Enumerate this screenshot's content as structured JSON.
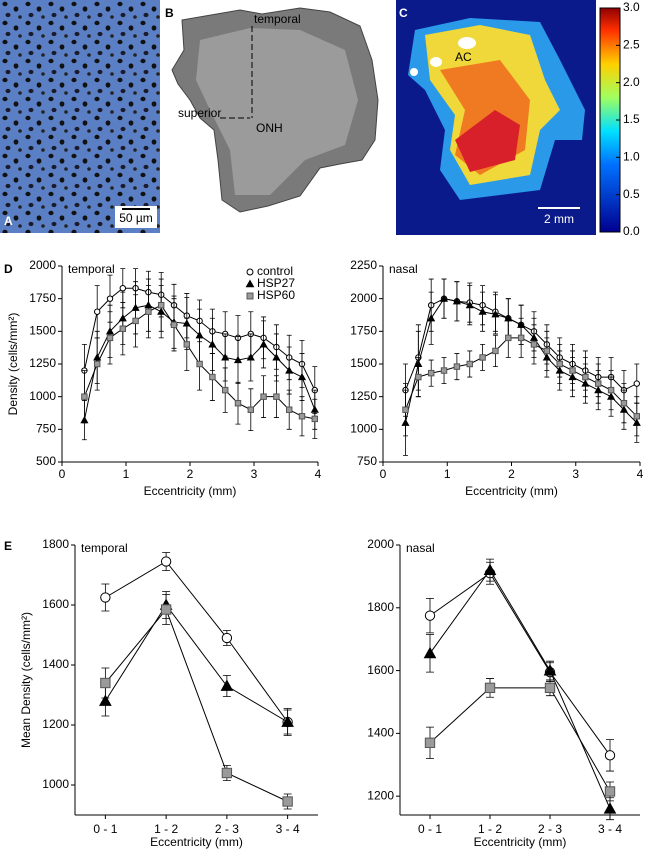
{
  "panels": {
    "A": {
      "label": "A",
      "scale_bar": "50 µm"
    },
    "B": {
      "label": "B",
      "annotations": [
        "temporal",
        "superior",
        "ONH"
      ]
    },
    "C": {
      "label": "C",
      "annotations": [
        "AC"
      ],
      "scale_bar": "2 mm",
      "colorbar": {
        "lim": [
          0,
          3
        ],
        "ticks": [
          {
            "value": 0,
            "label": "0.0"
          },
          0.5,
          {
            "value": 1,
            "label": "1.0"
          },
          1.5,
          {
            "value": 2,
            "label": "2.0"
          },
          2.5,
          {
            "value": 3,
            "label": "3.0"
          }
        ]
      }
    },
    "D": {
      "label": "D"
    },
    "E": {
      "label": "E"
    }
  },
  "chart_data": [
    {
      "type": "line",
      "title": "temporal",
      "xlabel": "Eccentricity (mm)",
      "ylabel": "Density (cells/mm²)",
      "x": [
        0.35,
        0.55,
        0.75,
        0.95,
        1.15,
        1.35,
        1.55,
        1.75,
        1.95,
        2.15,
        2.35,
        2.55,
        2.75,
        2.95,
        3.15,
        3.35,
        3.55,
        3.75,
        3.95
      ],
      "xlim": [
        0,
        4
      ],
      "xticks": [
        0,
        1,
        2,
        3,
        4
      ],
      "ylim": [
        500,
        2000
      ],
      "yticks": [
        500,
        750,
        1000,
        1250,
        1500,
        1750,
        2000
      ],
      "legend": "top-right",
      "series": [
        {
          "name": "control",
          "color": "#ffffff",
          "marker": "circle-open",
          "values": [
            1200,
            1650,
            1750,
            1830,
            1830,
            1800,
            1780,
            1700,
            1620,
            1580,
            1500,
            1480,
            1450,
            1480,
            1450,
            1380,
            1300,
            1250,
            1050
          ],
          "errors": [
            200,
            200,
            180,
            150,
            150,
            160,
            170,
            160,
            170,
            160,
            170,
            170,
            170,
            170,
            160,
            170,
            170,
            180,
            180
          ]
        },
        {
          "name": "HSP27",
          "color": "#000000",
          "marker": "triangle",
          "values": [
            820,
            1300,
            1500,
            1600,
            1680,
            1700,
            1650,
            1570,
            1560,
            1470,
            1400,
            1300,
            1280,
            1300,
            1400,
            1300,
            1200,
            1150,
            900
          ],
          "errors": [
            150,
            200,
            200,
            200,
            200,
            200,
            200,
            200,
            200,
            200,
            200,
            180,
            180,
            180,
            180,
            180,
            180,
            180,
            150
          ]
        },
        {
          "name": "HSP60",
          "color": "#9a9a9a",
          "marker": "square",
          "values": [
            1000,
            1250,
            1450,
            1520,
            1580,
            1650,
            1700,
            1550,
            1400,
            1250,
            1150,
            1050,
            950,
            900,
            1000,
            1000,
            900,
            850,
            830
          ],
          "errors": [
            200,
            200,
            200,
            200,
            200,
            200,
            200,
            200,
            200,
            200,
            180,
            170,
            160,
            160,
            160,
            160,
            150,
            150,
            150
          ]
        }
      ]
    },
    {
      "type": "line",
      "title": "nasal",
      "xlabel": "Eccentricity (mm)",
      "x": [
        0.35,
        0.55,
        0.75,
        0.95,
        1.15,
        1.35,
        1.55,
        1.75,
        1.95,
        2.15,
        2.35,
        2.55,
        2.75,
        2.95,
        3.15,
        3.35,
        3.55,
        3.75,
        3.95
      ],
      "xlim": [
        0,
        4
      ],
      "xticks": [
        0,
        1,
        2,
        3,
        4
      ],
      "ylim": [
        750,
        2250
      ],
      "yticks": [
        750,
        1000,
        1250,
        1500,
        1750,
        2000,
        2250
      ],
      "series": [
        {
          "color": "#ffffff",
          "marker": "circle-open",
          "values": [
            1300,
            1550,
            1950,
            2000,
            1980,
            1970,
            1950,
            1900,
            1850,
            1800,
            1750,
            1650,
            1550,
            1500,
            1450,
            1400,
            1400,
            1300,
            1350
          ],
          "errors": [
            200,
            250,
            200,
            150,
            150,
            150,
            150,
            150,
            150,
            150,
            150,
            150,
            150,
            150,
            150,
            150,
            150,
            150,
            150
          ]
        },
        {
          "color": "#000000",
          "marker": "triangle",
          "values": [
            1050,
            1500,
            1850,
            2000,
            1980,
            1950,
            1900,
            1880,
            1850,
            1800,
            1700,
            1550,
            1450,
            1400,
            1350,
            1300,
            1250,
            1150,
            1050
          ],
          "errors": [
            250,
            250,
            200,
            150,
            150,
            150,
            150,
            150,
            150,
            150,
            150,
            150,
            150,
            150,
            150,
            150,
            150,
            150,
            150
          ]
        },
        {
          "color": "#9a9a9a",
          "marker": "square",
          "values": [
            1150,
            1400,
            1430,
            1450,
            1480,
            1500,
            1550,
            1600,
            1700,
            1700,
            1650,
            1600,
            1500,
            1450,
            1400,
            1350,
            1300,
            1200,
            1100
          ],
          "errors": [
            200,
            150,
            100,
            100,
            100,
            100,
            100,
            120,
            150,
            150,
            150,
            150,
            150,
            150,
            150,
            150,
            150,
            150,
            150
          ]
        }
      ]
    },
    {
      "type": "line",
      "title": "temporal",
      "xlabel": "Eccentricity (mm)",
      "ylabel": "Mean Density (cells/mm²)",
      "categories": [
        "0 - 1",
        "1 - 2",
        "2 - 3",
        "3 - 4"
      ],
      "ylim": [
        900,
        1800
      ],
      "yticks": [
        1000,
        1200,
        1400,
        1600,
        1800
      ],
      "series": [
        {
          "color": "#ffffff",
          "marker": "circle-open",
          "values": [
            1625,
            1745,
            1490,
            1210
          ],
          "errors": [
            45,
            30,
            25,
            40
          ]
        },
        {
          "color": "#000000",
          "marker": "triangle",
          "values": [
            1280,
            1600,
            1330,
            1210
          ],
          "errors": [
            50,
            45,
            35,
            45
          ]
        },
        {
          "color": "#9a9a9a",
          "marker": "square",
          "values": [
            1340,
            1585,
            1040,
            945
          ],
          "errors": [
            50,
            50,
            25,
            25
          ]
        }
      ]
    },
    {
      "type": "line",
      "title": "nasal",
      "xlabel": "Eccentricity (mm)",
      "categories": [
        "0 - 1",
        "1 - 2",
        "2 - 3",
        "3 - 4"
      ],
      "ylim": [
        1140,
        2000
      ],
      "yticks": [
        1200,
        1400,
        1600,
        1800,
        2000
      ],
      "series": [
        {
          "color": "#ffffff",
          "marker": "circle-open",
          "values": [
            1775,
            1910,
            1595,
            1330
          ],
          "errors": [
            55,
            35,
            30,
            50
          ]
        },
        {
          "color": "#000000",
          "marker": "triangle",
          "values": [
            1655,
            1920,
            1600,
            1160
          ],
          "errors": [
            60,
            35,
            30,
            35
          ]
        },
        {
          "color": "#9a9a9a",
          "marker": "square",
          "values": [
            1370,
            1545,
            1545,
            1215
          ],
          "errors": [
            50,
            30,
            25,
            30
          ]
        }
      ]
    }
  ]
}
